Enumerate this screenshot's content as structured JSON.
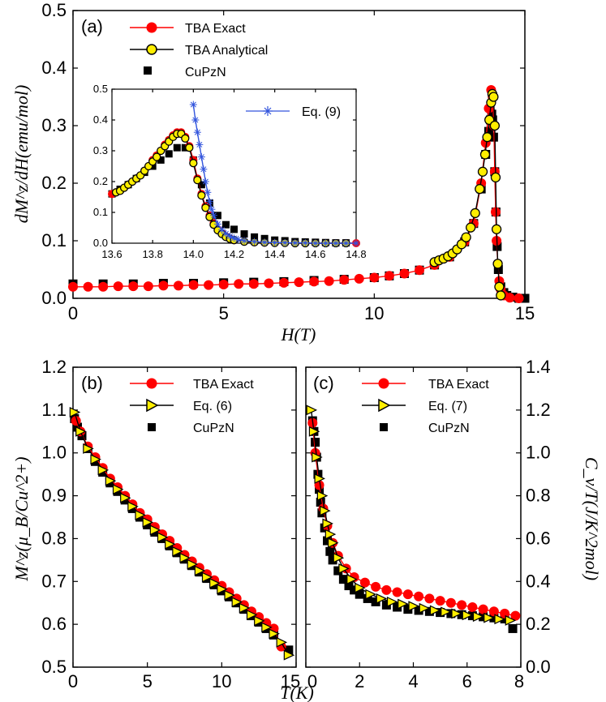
{
  "chart_data": [
    {
      "id": "a",
      "type": "line",
      "panel_label": "(a)",
      "xlabel": "H(T)",
      "ylabel": "dM^z/dH(emu/mol)",
      "xlim": [
        0,
        15
      ],
      "ylim": [
        0,
        0.5
      ],
      "xticks": [
        "0",
        "5",
        "10",
        "15"
      ],
      "yticks": [
        "0.0",
        "0.1",
        "0.2",
        "0.3",
        "0.4",
        "0.5"
      ],
      "series": [
        {
          "name": "TBA Exact",
          "color": "#ff0000",
          "marker": "circle-red",
          "x": [
            0.0,
            0.5,
            1.0,
            1.5,
            2.0,
            2.5,
            3.0,
            3.5,
            4.0,
            4.5,
            5.0,
            5.5,
            6.0,
            6.5,
            7.0,
            7.5,
            8.0,
            8.5,
            9.0,
            9.5,
            10.0,
            10.5,
            11.0,
            11.5,
            12.0,
            12.5,
            13.0,
            13.3,
            13.55,
            13.7,
            13.8,
            13.88,
            13.93,
            13.97,
            14.0,
            14.03,
            14.06,
            14.1,
            14.15,
            14.2,
            14.3,
            14.5,
            14.8
          ],
          "y": [
            0.02,
            0.02,
            0.02,
            0.021,
            0.021,
            0.021,
            0.022,
            0.022,
            0.023,
            0.023,
            0.024,
            0.025,
            0.025,
            0.026,
            0.027,
            0.028,
            0.029,
            0.03,
            0.032,
            0.034,
            0.036,
            0.039,
            0.043,
            0.049,
            0.058,
            0.072,
            0.098,
            0.13,
            0.2,
            0.27,
            0.33,
            0.362,
            0.35,
            0.3,
            0.22,
            0.15,
            0.1,
            0.06,
            0.03,
            0.015,
            0.005,
            0.001,
            0.0
          ]
        },
        {
          "name": "TBA Analytical",
          "color": "#000000",
          "marker": "circle-yellow",
          "x": [
            12.0,
            12.15,
            12.3,
            12.45,
            12.6,
            12.75,
            12.9,
            13.05,
            13.2,
            13.35,
            13.5,
            13.6,
            13.68,
            13.75,
            13.82,
            13.88,
            13.92,
            13.96,
            14.0,
            14.03,
            14.06,
            14.1,
            14.15,
            14.2
          ],
          "y": [
            0.063,
            0.066,
            0.069,
            0.073,
            0.078,
            0.085,
            0.094,
            0.106,
            0.123,
            0.148,
            0.19,
            0.22,
            0.25,
            0.28,
            0.31,
            0.34,
            0.355,
            0.35,
            0.3,
            0.21,
            0.12,
            0.06,
            0.02,
            0.005
          ]
        },
        {
          "name": "CuPzN",
          "color": "#000000",
          "marker": "square",
          "x": [
            0.0,
            1.0,
            2.0,
            3.0,
            4.0,
            5.0,
            6.0,
            7.0,
            8.0,
            9.0,
            10.0,
            10.5,
            11.0,
            11.5,
            12.0,
            12.5,
            13.0,
            13.3,
            13.55,
            13.7,
            13.8,
            13.86,
            13.9,
            13.93,
            13.96,
            14.0,
            14.04,
            14.08,
            14.12,
            14.2,
            14.3,
            14.4,
            14.6,
            14.8,
            15.0
          ],
          "y": [
            0.025,
            0.025,
            0.025,
            0.026,
            0.026,
            0.027,
            0.028,
            0.029,
            0.031,
            0.033,
            0.036,
            0.039,
            0.043,
            0.049,
            0.058,
            0.072,
            0.098,
            0.13,
            0.19,
            0.25,
            0.29,
            0.31,
            0.32,
            0.31,
            0.28,
            0.22,
            0.15,
            0.09,
            0.05,
            0.02,
            0.01,
            0.005,
            0.002,
            0.0,
            0.0
          ]
        }
      ],
      "inset": {
        "xlim": [
          13.6,
          14.8
        ],
        "ylim": [
          0,
          0.5
        ],
        "xticks": [
          "13.6",
          "13.8",
          "14.0",
          "14.2",
          "14.4",
          "14.6",
          "14.8"
        ],
        "yticks": [
          "0.0",
          "0.1",
          "0.2",
          "0.3",
          "0.4",
          "0.5"
        ],
        "legend": "Eq. (9)",
        "series": [
          {
            "name": "TBA Exact",
            "color": "#ff0000",
            "marker": "circle-red",
            "x": [
              13.6,
              13.62,
              13.64,
              13.66,
              13.68,
              13.7,
              13.72,
              13.74,
              13.76,
              13.78,
              13.8,
              13.82,
              13.84,
              13.86,
              13.88,
              13.9,
              13.92,
              13.94,
              13.96,
              13.98,
              14.0,
              14.02,
              14.04,
              14.06,
              14.08,
              14.1,
              14.12,
              14.14,
              14.16,
              14.18,
              14.2,
              14.25,
              14.3,
              14.35,
              14.4,
              14.45,
              14.5,
              14.55,
              14.6,
              14.65,
              14.7,
              14.75,
              14.8
            ],
            "y": [
              0.16,
              0.165,
              0.17,
              0.18,
              0.19,
              0.2,
              0.21,
              0.22,
              0.235,
              0.25,
              0.27,
              0.285,
              0.3,
              0.32,
              0.335,
              0.35,
              0.36,
              0.36,
              0.345,
              0.315,
              0.27,
              0.21,
              0.16,
              0.12,
              0.09,
              0.065,
              0.045,
              0.032,
              0.022,
              0.015,
              0.01,
              0.005,
              0.003,
              0.002,
              0.001,
              0.001,
              0.0,
              0.0,
              0.0,
              0.0,
              0.0,
              0.0,
              0.0
            ]
          },
          {
            "name": "TBA Analytical",
            "color": "#000000",
            "marker": "circle-yellow",
            "x": [
              13.62,
              13.64,
              13.66,
              13.68,
              13.7,
              13.72,
              13.74,
              13.76,
              13.78,
              13.8,
              13.82,
              13.84,
              13.86,
              13.88,
              13.9,
              13.92,
              13.94,
              13.96,
              13.98,
              14.0,
              14.02,
              14.04,
              14.06,
              14.08,
              14.1,
              14.12,
              14.14,
              14.16,
              14.18,
              14.2,
              14.25,
              14.3,
              14.35,
              14.4,
              14.45,
              14.5,
              14.55,
              14.6,
              14.65,
              14.7,
              14.75
            ],
            "y": [
              0.165,
              0.17,
              0.18,
              0.19,
              0.2,
              0.21,
              0.22,
              0.235,
              0.25,
              0.265,
              0.28,
              0.3,
              0.315,
              0.33,
              0.345,
              0.355,
              0.355,
              0.34,
              0.31,
              0.26,
              0.205,
              0.155,
              0.115,
              0.085,
              0.06,
              0.042,
              0.03,
              0.02,
              0.014,
              0.01,
              0.005,
              0.003,
              0.002,
              0.001,
              0.001,
              0.0,
              0.0,
              0.0,
              0.0,
              0.0,
              0.0
            ]
          },
          {
            "name": "CuPzN",
            "color": "#000000",
            "marker": "square",
            "x": [
              13.6,
              13.64,
              13.68,
              13.72,
              13.76,
              13.8,
              13.84,
              13.88,
              13.92,
              13.96,
              14.0,
              14.04,
              14.08,
              14.12,
              14.16,
              14.2,
              14.25,
              14.3,
              14.35,
              14.4,
              14.45,
              14.5,
              14.55,
              14.6,
              14.65,
              14.7,
              14.75
            ],
            "y": [
              0.16,
              0.175,
              0.19,
              0.21,
              0.23,
              0.25,
              0.27,
              0.29,
              0.31,
              0.31,
              0.27,
              0.19,
              0.13,
              0.09,
              0.06,
              0.045,
              0.03,
              0.02,
              0.015,
              0.01,
              0.008,
              0.005,
              0.004,
              0.003,
              0.002,
              0.001,
              0.001
            ]
          },
          {
            "name": "Eq. (9)",
            "color": "#3355dd",
            "marker": "asterisk",
            "x": [
              14.0,
              14.01,
              14.02,
              14.03,
              14.04,
              14.05,
              14.06,
              14.07,
              14.08,
              14.09,
              14.1,
              14.12,
              14.14,
              14.16,
              14.18,
              14.2,
              14.22,
              14.25,
              14.3,
              14.35,
              14.4,
              14.45,
              14.5,
              14.55,
              14.6,
              14.65,
              14.7,
              14.75,
              14.8
            ],
            "y": [
              0.45,
              0.4,
              0.36,
              0.32,
              0.28,
              0.24,
              0.2,
              0.165,
              0.135,
              0.11,
              0.09,
              0.062,
              0.043,
              0.031,
              0.022,
              0.016,
              0.012,
              0.008,
              0.005,
              0.003,
              0.002,
              0.0015,
              0.001,
              0.001,
              0.0,
              0.0,
              0.0,
              0.0,
              0.0
            ]
          }
        ]
      }
    },
    {
      "id": "b",
      "type": "line",
      "panel_label": "(b)",
      "xlabel": "T(K)",
      "ylabel": "M^z(μ_B/Cu^2+)",
      "xlim": [
        0,
        15
      ],
      "ylim": [
        0.5,
        1.2
      ],
      "xticks": [
        "0",
        "5",
        "10",
        "15"
      ],
      "yticks": [
        "0.5",
        "0.6",
        "0.7",
        "0.8",
        "0.9",
        "1.0",
        "1.1",
        "1.2"
      ],
      "series": [
        {
          "name": "TBA Exact",
          "color": "#ff0000",
          "marker": "circle-red",
          "x": [
            0.2,
            0.5,
            1.0,
            1.5,
            2.0,
            2.5,
            3.0,
            3.5,
            4.0,
            4.5,
            5.0,
            5.5,
            6.0,
            6.5,
            7.0,
            7.5,
            8.0,
            8.5,
            9.0,
            9.5,
            10.0,
            10.5,
            11.0,
            11.5,
            12.0,
            12.5,
            13.0,
            13.5,
            14.0
          ],
          "y": [
            1.075,
            1.05,
            1.015,
            0.99,
            0.965,
            0.94,
            0.92,
            0.9,
            0.88,
            0.86,
            0.845,
            0.827,
            0.81,
            0.795,
            0.778,
            0.762,
            0.747,
            0.732,
            0.717,
            0.703,
            0.69,
            0.675,
            0.66,
            0.645,
            0.63,
            0.617,
            0.603,
            0.59,
            0.548
          ]
        },
        {
          "name": "Eq. (6)",
          "color": "#000000",
          "marker": "triangle",
          "x": [
            0.1,
            0.5,
            1.0,
            1.5,
            2.0,
            2.5,
            3.0,
            3.5,
            4.0,
            4.5,
            5.0,
            5.5,
            6.0,
            6.5,
            7.0,
            7.5,
            8.0,
            8.5,
            9.0,
            9.5,
            10.0,
            10.5,
            11.0,
            11.5,
            12.0,
            12.5,
            13.0,
            13.5,
            14.0,
            14.5
          ],
          "y": [
            1.095,
            1.05,
            1.01,
            0.985,
            0.96,
            0.935,
            0.915,
            0.895,
            0.875,
            0.855,
            0.838,
            0.82,
            0.803,
            0.787,
            0.77,
            0.755,
            0.74,
            0.725,
            0.71,
            0.696,
            0.682,
            0.668,
            0.652,
            0.638,
            0.622,
            0.608,
            0.593,
            0.578,
            0.558,
            0.528
          ]
        },
        {
          "name": "CuPzN",
          "color": "#000000",
          "marker": "square",
          "x": [
            0.1,
            0.3,
            0.6,
            1.0,
            1.5,
            2.0,
            2.5,
            3.0,
            3.5,
            4.0,
            4.5,
            5.0,
            5.5,
            6.0,
            6.5,
            7.0,
            7.5,
            8.0,
            8.5,
            9.0,
            9.5,
            10.0,
            10.5,
            11.0,
            11.5,
            12.0,
            12.5,
            13.0,
            13.5,
            14.5
          ],
          "y": [
            1.08,
            1.06,
            1.04,
            1.01,
            0.98,
            0.955,
            0.93,
            0.91,
            0.89,
            0.87,
            0.85,
            0.832,
            0.815,
            0.8,
            0.783,
            0.767,
            0.752,
            0.737,
            0.722,
            0.707,
            0.692,
            0.678,
            0.664,
            0.65,
            0.635,
            0.62,
            0.605,
            0.59,
            0.575,
            0.54
          ]
        }
      ]
    },
    {
      "id": "c",
      "type": "line",
      "panel_label": "(c)",
      "xlabel": "T(K)",
      "ylabel": "C_v/T(J/K^2mol)",
      "xlim": [
        0,
        8
      ],
      "ylim": [
        0.0,
        1.4
      ],
      "xticks": [
        "0",
        "2",
        "4",
        "6",
        "8"
      ],
      "yticks": [
        "0.0",
        "0.2",
        "0.4",
        "0.6",
        "0.8",
        "1.0",
        "1.2",
        "1.4"
      ],
      "series": [
        {
          "name": "TBA Exact",
          "color": "#ff0000",
          "marker": "circle-red",
          "x": [
            0.25,
            0.35,
            0.5,
            0.65,
            0.8,
            1.0,
            1.2,
            1.5,
            1.8,
            2.2,
            2.6,
            3.0,
            3.4,
            3.8,
            4.2,
            4.6,
            5.0,
            5.4,
            5.8,
            6.2,
            6.6,
            7.0,
            7.4,
            7.8
          ],
          "y": [
            1.14,
            1.0,
            0.85,
            0.74,
            0.66,
            0.58,
            0.52,
            0.46,
            0.42,
            0.395,
            0.375,
            0.36,
            0.35,
            0.34,
            0.33,
            0.32,
            0.31,
            0.3,
            0.29,
            0.28,
            0.27,
            0.26,
            0.25,
            0.24
          ]
        },
        {
          "name": "Eq. (7)",
          "color": "#000000",
          "marker": "triangle",
          "x": [
            0.2,
            0.3,
            0.4,
            0.5,
            0.6,
            0.7,
            0.8,
            0.9,
            1.0,
            1.2,
            1.4,
            1.7,
            2.0,
            2.4,
            2.8,
            3.2,
            3.6,
            4.0,
            4.4,
            4.8,
            5.2,
            5.6,
            6.0,
            6.4,
            6.8,
            7.2,
            7.6
          ],
          "y": [
            1.2,
            1.1,
            0.98,
            0.88,
            0.8,
            0.73,
            0.67,
            0.62,
            0.58,
            0.51,
            0.46,
            0.41,
            0.37,
            0.34,
            0.32,
            0.305,
            0.295,
            0.285,
            0.275,
            0.265,
            0.258,
            0.25,
            0.243,
            0.236,
            0.23,
            0.224,
            0.218
          ]
        },
        {
          "name": "CuPzN",
          "color": "#000000",
          "marker": "square",
          "x": [
            0.25,
            0.3,
            0.35,
            0.4,
            0.45,
            0.5,
            0.55,
            0.6,
            0.7,
            0.8,
            0.9,
            1.0,
            1.2,
            1.4,
            1.6,
            1.8,
            2.0,
            2.3,
            2.6,
            3.0,
            3.4,
            3.8,
            4.2,
            4.6,
            5.0,
            5.4,
            5.8,
            6.2,
            6.6,
            7.0,
            7.4,
            7.7
          ],
          "y": [
            1.15,
            1.1,
            1.05,
            0.98,
            0.9,
            0.83,
            0.77,
            0.72,
            0.65,
            0.59,
            0.54,
            0.5,
            0.45,
            0.41,
            0.38,
            0.36,
            0.34,
            0.32,
            0.305,
            0.29,
            0.28,
            0.27,
            0.265,
            0.26,
            0.255,
            0.25,
            0.245,
            0.24,
            0.235,
            0.23,
            0.225,
            0.18
          ]
        }
      ]
    }
  ]
}
